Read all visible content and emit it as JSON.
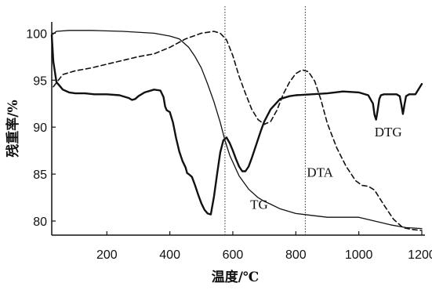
{
  "chart_data": {
    "type": "line",
    "title": "",
    "xlabel": "温度/℃",
    "ylabel": "残重率/%",
    "xlim": [
      25,
      1210
    ],
    "ylim": [
      78.5,
      101.2
    ],
    "x_ticks": [
      200,
      400,
      600,
      800,
      1000,
      1200
    ],
    "y_ticks": [
      80,
      85,
      90,
      95,
      100
    ],
    "grid": false,
    "legend": "none",
    "reference_lines_x": [
      575,
      830
    ],
    "series": [
      {
        "name": "TG",
        "style": "thin-solid",
        "x": [
          25,
          40,
          80,
          150,
          250,
          350,
          400,
          430,
          460,
          480,
          500,
          520,
          540,
          560,
          575,
          590,
          620,
          650,
          680,
          700,
          720,
          750,
          780,
          800,
          850,
          900,
          950,
          1000,
          1050,
          1100,
          1150,
          1200
        ],
        "y": [
          99.8,
          100.2,
          100.3,
          100.3,
          100.2,
          100.0,
          99.7,
          99.4,
          98.5,
          97.5,
          96.3,
          94.6,
          92.7,
          90.5,
          88.6,
          87.0,
          84.8,
          83.4,
          82.5,
          82.1,
          81.8,
          81.3,
          81.0,
          80.8,
          80.6,
          80.4,
          80.4,
          80.4,
          80.0,
          79.6,
          79.3,
          79.2
        ]
      },
      {
        "name": "DTA",
        "style": "dashed",
        "x": [
          30,
          60,
          100,
          150,
          200,
          250,
          300,
          350,
          400,
          450,
          500,
          540,
          560,
          580,
          600,
          620,
          640,
          660,
          680,
          700,
          720,
          740,
          760,
          780,
          800,
          820,
          840,
          860,
          880,
          900,
          930,
          960,
          990,
          1010,
          1030,
          1050,
          1080,
          1110,
          1140,
          1170,
          1200
        ],
        "y": [
          94.3,
          95.6,
          96.0,
          96.3,
          96.7,
          97.1,
          97.5,
          97.8,
          98.5,
          99.4,
          100.0,
          100.2,
          100.0,
          99.3,
          97.6,
          95.4,
          93.6,
          91.9,
          90.8,
          90.3,
          90.6,
          91.8,
          93.5,
          94.8,
          95.7,
          96.1,
          95.9,
          94.9,
          92.9,
          90.4,
          87.8,
          85.8,
          84.3,
          83.8,
          83.7,
          83.3,
          81.7,
          80.2,
          79.3,
          79.1,
          79.0
        ]
      },
      {
        "name": "DTG",
        "style": "thick-solid",
        "x": [
          25,
          30,
          40,
          60,
          80,
          100,
          130,
          160,
          200,
          240,
          270,
          280,
          290,
          300,
          320,
          350,
          370,
          380,
          385,
          390,
          400,
          410,
          420,
          430,
          440,
          450,
          455,
          460,
          470,
          480,
          490,
          500,
          510,
          520,
          530,
          540,
          550,
          560,
          570,
          580,
          590,
          600,
          610,
          620,
          630,
          640,
          650,
          660,
          670,
          680,
          690,
          700,
          720,
          750,
          780,
          800,
          850,
          900,
          950,
          1000,
          1030,
          1045,
          1050,
          1055,
          1060,
          1065,
          1070,
          1080,
          1100,
          1120,
          1130,
          1135,
          1140,
          1145,
          1150,
          1160,
          1180,
          1200
        ],
        "y": [
          99.8,
          97.0,
          94.8,
          94.0,
          93.7,
          93.6,
          93.6,
          93.5,
          93.5,
          93.4,
          93.1,
          92.9,
          93.0,
          93.3,
          93.7,
          94.0,
          93.9,
          93.2,
          92.2,
          91.8,
          91.6,
          90.5,
          88.8,
          87.4,
          86.4,
          85.7,
          85.1,
          85.0,
          84.7,
          83.8,
          82.8,
          81.9,
          81.2,
          80.8,
          80.7,
          82.6,
          85.0,
          87.3,
          88.6,
          88.9,
          88.3,
          87.5,
          86.6,
          85.8,
          85.3,
          85.3,
          85.8,
          86.7,
          87.7,
          88.7,
          89.7,
          90.6,
          91.9,
          93.0,
          93.3,
          93.4,
          93.5,
          93.6,
          93.8,
          93.7,
          93.4,
          92.5,
          91.3,
          90.8,
          91.8,
          93.0,
          93.4,
          93.5,
          93.5,
          93.5,
          93.3,
          92.4,
          91.4,
          92.4,
          93.3,
          93.5,
          93.5,
          94.6
        ]
      }
    ],
    "curve_labels": [
      {
        "text": "TG",
        "x": 655,
        "y": 81.3
      },
      {
        "text": "DTA",
        "x": 835,
        "y": 84.7
      },
      {
        "text": "DTG",
        "x": 1050,
        "y": 89.0
      }
    ]
  }
}
